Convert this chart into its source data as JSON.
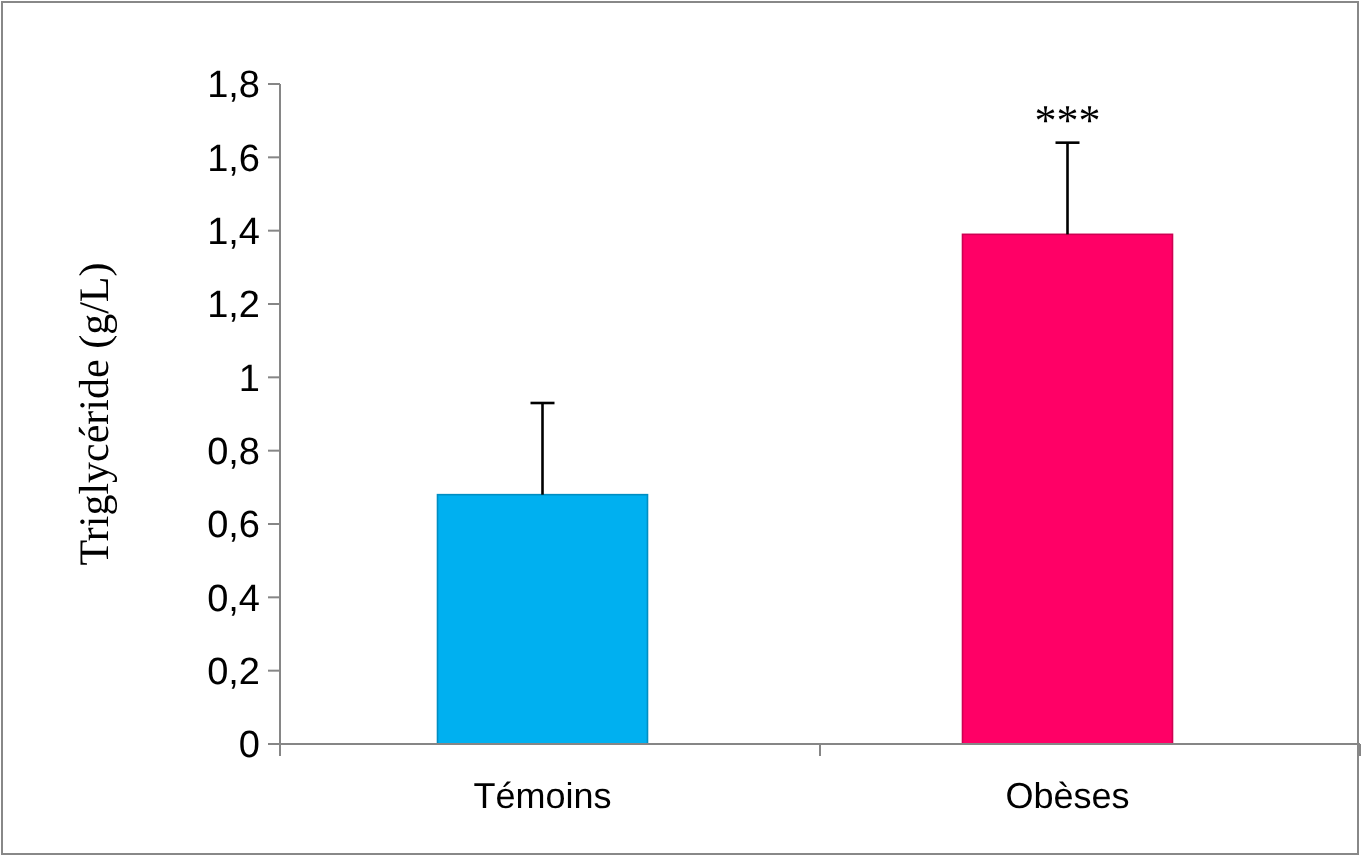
{
  "chart_data": {
    "type": "bar",
    "ylabel": "Triglycéride (g/L)",
    "categories": [
      "Témoins",
      "Obèses"
    ],
    "values": [
      0.68,
      1.39
    ],
    "colors": [
      "#00b0f0",
      "#ff0066"
    ],
    "errors": [
      [
        0.68,
        0.93
      ],
      [
        1.39,
        1.64
      ]
    ],
    "ylim": [
      0,
      1.8
    ],
    "yticks": [
      0,
      {
        "value": 0.2,
        "label": "0,2"
      },
      {
        "value": 0.4,
        "label": "0,4"
      },
      {
        "value": 0.6,
        "label": "0,6"
      },
      {
        "value": 0.8,
        "label": "0,8"
      },
      1,
      {
        "value": 1.2,
        "label": "1,2"
      },
      {
        "value": 1.4,
        "label": "1,4"
      },
      {
        "value": 1.6,
        "label": "1,6"
      },
      {
        "value": 1.8,
        "label": "1,8"
      }
    ],
    "annotations": [
      {
        "text": "***",
        "x": "Obèses",
        "y": 1.64
      }
    ],
    "grid": false
  }
}
